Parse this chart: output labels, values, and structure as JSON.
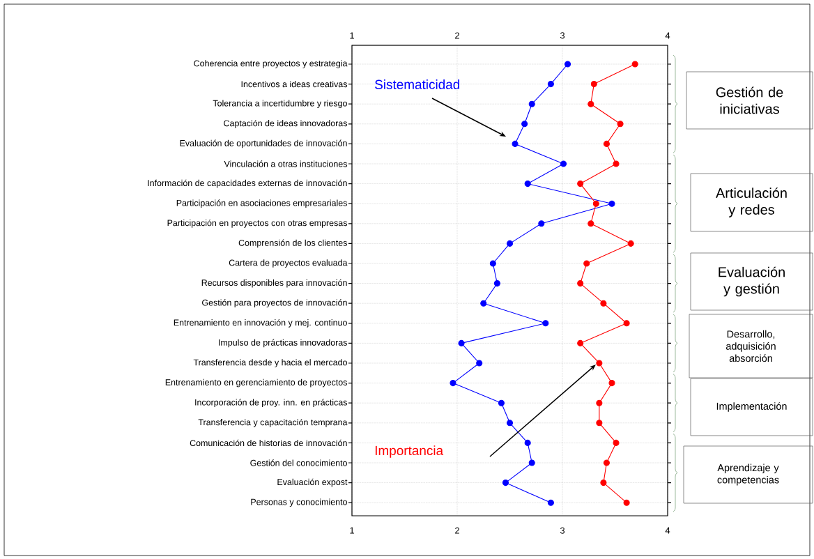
{
  "chart_data": {
    "type": "line",
    "orientation": "horizontal",
    "categories": [
      "Coherencia entre proyectos y estrategia",
      "Incentivos a ideas creativas",
      "Tolerancia a incertidumbre y riesgo",
      "Captación de ideas innovadoras",
      "Evaluación de oportunidades de innovación",
      "Vinculación a otras instituciones",
      "Información de capacidades externas de innovación",
      "Participación en asociaciones empresariales",
      "Participación en proyectos con otras empresas",
      "Comprensión de los clientes",
      "Cartera de proyectos evaluada",
      "Recursos disponibles para innovación",
      "Gestión para proyectos de innovación",
      "Entrenamiento en innovación y mej. continuo",
      "Impulso de prácticas innovadoras",
      "Transferencia desde y hacia el mercado",
      "Entrenamiento en gerenciamiento de proyectos",
      "Incorporación de proy. inn. en prácticas",
      "Transferencia y capacitación temprana",
      "Comunicación  de historias de innovación",
      "Gestión del conocimiento",
      "Evaluación expost",
      "Personas y conocimiento"
    ],
    "series": [
      {
        "name": "Sistematicidad",
        "color": "#0000ff",
        "values": [
          3.05,
          2.89,
          2.71,
          2.64,
          2.55,
          3.01,
          2.67,
          3.47,
          2.8,
          2.5,
          2.34,
          2.38,
          2.25,
          2.84,
          2.04,
          2.21,
          1.96,
          2.42,
          2.5,
          2.67,
          2.71,
          2.46,
          2.89
        ]
      },
      {
        "name": "Importancia",
        "color": "#ff0000",
        "values": [
          3.69,
          3.3,
          3.27,
          3.55,
          3.42,
          3.51,
          3.17,
          3.32,
          3.27,
          3.65,
          3.23,
          3.17,
          3.39,
          3.61,
          3.17,
          3.35,
          3.47,
          3.35,
          3.35,
          3.51,
          3.42,
          3.39,
          3.61
        ]
      }
    ],
    "xlim": [
      1,
      4
    ],
    "xticks": [
      1,
      2,
      3,
      4
    ],
    "x2lim": [
      1,
      4
    ],
    "x2ticks": [
      1,
      2,
      3,
      4
    ],
    "grid": true,
    "marker": "circle",
    "line_style": "solid",
    "annotations": [
      "Gestión de iniciativas",
      "Articulación y redes",
      "Evaluación y gestión",
      "Desarrollo, adquisición absorción",
      "Implementación",
      "Aprendizaje y competencias"
    ]
  }
}
